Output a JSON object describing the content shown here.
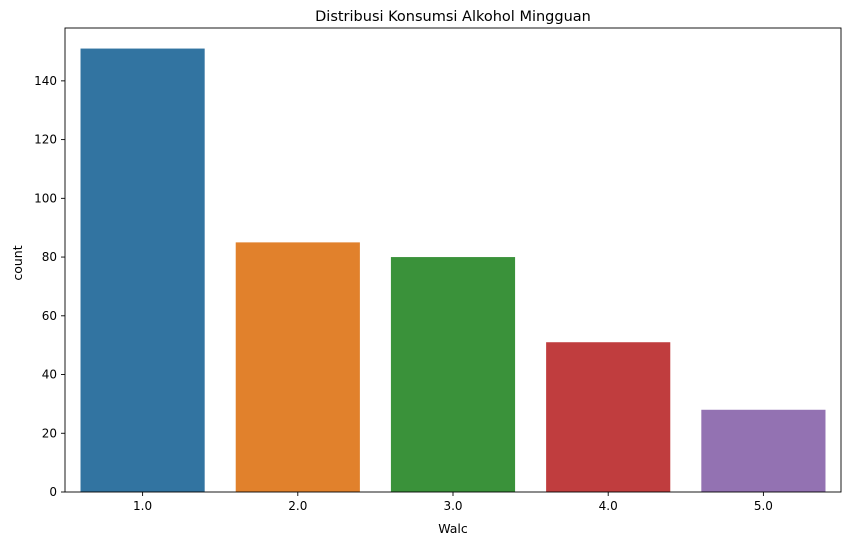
{
  "chart_data": {
    "type": "bar",
    "title": "Distribusi Konsumsi Alkohol Mingguan",
    "xlabel": "Walc",
    "ylabel": "count",
    "categories": [
      "1.0",
      "2.0",
      "3.0",
      "4.0",
      "5.0"
    ],
    "values": [
      151,
      85,
      80,
      51,
      28
    ],
    "colors": [
      "#3274a1",
      "#e1812c",
      "#3a923a",
      "#c03d3e",
      "#9372b2"
    ],
    "ylim": [
      0,
      158
    ],
    "yticks": [
      0,
      20,
      40,
      60,
      80,
      100,
      120,
      140
    ],
    "grid": false,
    "legend": "none"
  }
}
